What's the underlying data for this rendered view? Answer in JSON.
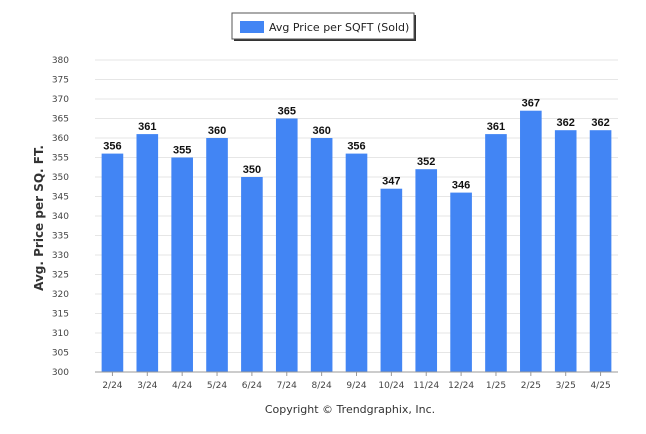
{
  "chart_data": {
    "type": "bar",
    "categories": [
      "2/24",
      "3/24",
      "4/24",
      "5/24",
      "6/24",
      "7/24",
      "8/24",
      "9/24",
      "10/24",
      "11/24",
      "12/24",
      "1/25",
      "2/25",
      "3/25",
      "4/25"
    ],
    "series": [
      {
        "name": "Avg Price per SQFT (Sold)",
        "values": [
          356,
          361,
          355,
          360,
          350,
          365,
          360,
          356,
          347,
          352,
          346,
          361,
          367,
          362,
          362
        ]
      }
    ],
    "ylabel": "Avg. Price per SQ. FT.",
    "xlabel": "",
    "ylim": [
      300,
      380
    ],
    "ytick_step": 5,
    "grid": true,
    "legend_position": "top-center",
    "data_labels": true,
    "colors": {
      "bar": "#4285f4",
      "grid": "#e6e6e6",
      "axis": "#999999"
    }
  },
  "footer": {
    "copyright": "Copyright © Trendgraphix, Inc."
  }
}
